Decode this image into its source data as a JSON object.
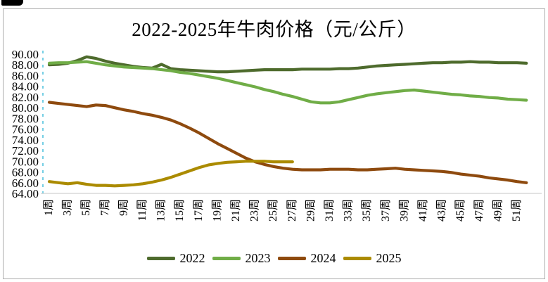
{
  "chart_data": {
    "type": "line",
    "title": "2022-2025年牛肉价格（元/公斤）",
    "xlabel": "",
    "ylabel": "",
    "ylim": [
      64,
      90
    ],
    "y_step": 2,
    "grid": false,
    "legend_position": "bottom",
    "axis_color": "#d9d9d9",
    "guide_color": "#38b9d9",
    "y_tick_labels": [
      "90.00",
      "88.00",
      "86.00",
      "84.00",
      "82.00",
      "80.00",
      "78.00",
      "76.00",
      "74.00",
      "72.00",
      "70.00",
      "68.00",
      "66.00",
      "64.00"
    ],
    "x_tick_labels": [
      "1周",
      "3周",
      "5周",
      "7周",
      "9周",
      "11周",
      "13周",
      "15周",
      "17周",
      "19周",
      "21周",
      "23周",
      "25周",
      "27周",
      "29周",
      "31周",
      "33周",
      "35周",
      "37周",
      "39周",
      "41周",
      "43周",
      "45周",
      "47周",
      "49周",
      "51周"
    ],
    "x_weeks_total": 52,
    "series": [
      {
        "name": "2022",
        "color": "#4e6b2d",
        "start_week": 1,
        "values": [
          88.0,
          88.1,
          88.3,
          88.8,
          89.5,
          89.2,
          88.7,
          88.3,
          88.0,
          87.7,
          87.5,
          87.4,
          88.1,
          87.3,
          87.1,
          87.0,
          86.9,
          86.8,
          86.7,
          86.7,
          86.8,
          86.9,
          87.0,
          87.1,
          87.1,
          87.1,
          87.1,
          87.2,
          87.2,
          87.2,
          87.2,
          87.3,
          87.3,
          87.4,
          87.6,
          87.8,
          87.9,
          88.0,
          88.1,
          88.2,
          88.3,
          88.4,
          88.4,
          88.5,
          88.5,
          88.6,
          88.5,
          88.5,
          88.4,
          88.4,
          88.4,
          88.3
        ]
      },
      {
        "name": "2023",
        "color": "#70ad47",
        "start_week": 1,
        "values": [
          88.3,
          88.4,
          88.4,
          88.5,
          88.6,
          88.3,
          88.0,
          87.8,
          87.6,
          87.5,
          87.4,
          87.3,
          87.1,
          86.9,
          86.6,
          86.4,
          86.1,
          85.8,
          85.5,
          85.1,
          84.7,
          84.3,
          83.9,
          83.4,
          83.0,
          82.5,
          82.1,
          81.6,
          81.1,
          80.9,
          80.9,
          81.1,
          81.5,
          81.9,
          82.3,
          82.6,
          82.8,
          83.0,
          83.2,
          83.3,
          83.1,
          82.9,
          82.7,
          82.5,
          82.4,
          82.2,
          82.1,
          81.9,
          81.8,
          81.6,
          81.5,
          81.4
        ]
      },
      {
        "name": "2024",
        "color": "#8e4a0e",
        "start_week": 1,
        "values": [
          81.0,
          80.8,
          80.6,
          80.4,
          80.2,
          80.5,
          80.4,
          80.0,
          79.6,
          79.3,
          78.9,
          78.6,
          78.2,
          77.7,
          77.0,
          76.2,
          75.3,
          74.3,
          73.3,
          72.4,
          71.5,
          70.6,
          69.9,
          69.4,
          69.0,
          68.7,
          68.5,
          68.4,
          68.4,
          68.4,
          68.5,
          68.5,
          68.5,
          68.4,
          68.4,
          68.5,
          68.6,
          68.7,
          68.5,
          68.4,
          68.3,
          68.2,
          68.1,
          67.9,
          67.6,
          67.4,
          67.2,
          66.9,
          66.7,
          66.5,
          66.2,
          66.0
        ]
      },
      {
        "name": "2025",
        "color": "#ab8b00",
        "start_week": 1,
        "values": [
          66.2,
          66.0,
          65.8,
          66.0,
          65.7,
          65.5,
          65.5,
          65.4,
          65.5,
          65.6,
          65.8,
          66.1,
          66.5,
          67.0,
          67.6,
          68.2,
          68.8,
          69.3,
          69.6,
          69.8,
          69.9,
          70.0,
          70.0,
          70.0,
          69.9,
          69.9,
          69.9
        ]
      }
    ]
  }
}
